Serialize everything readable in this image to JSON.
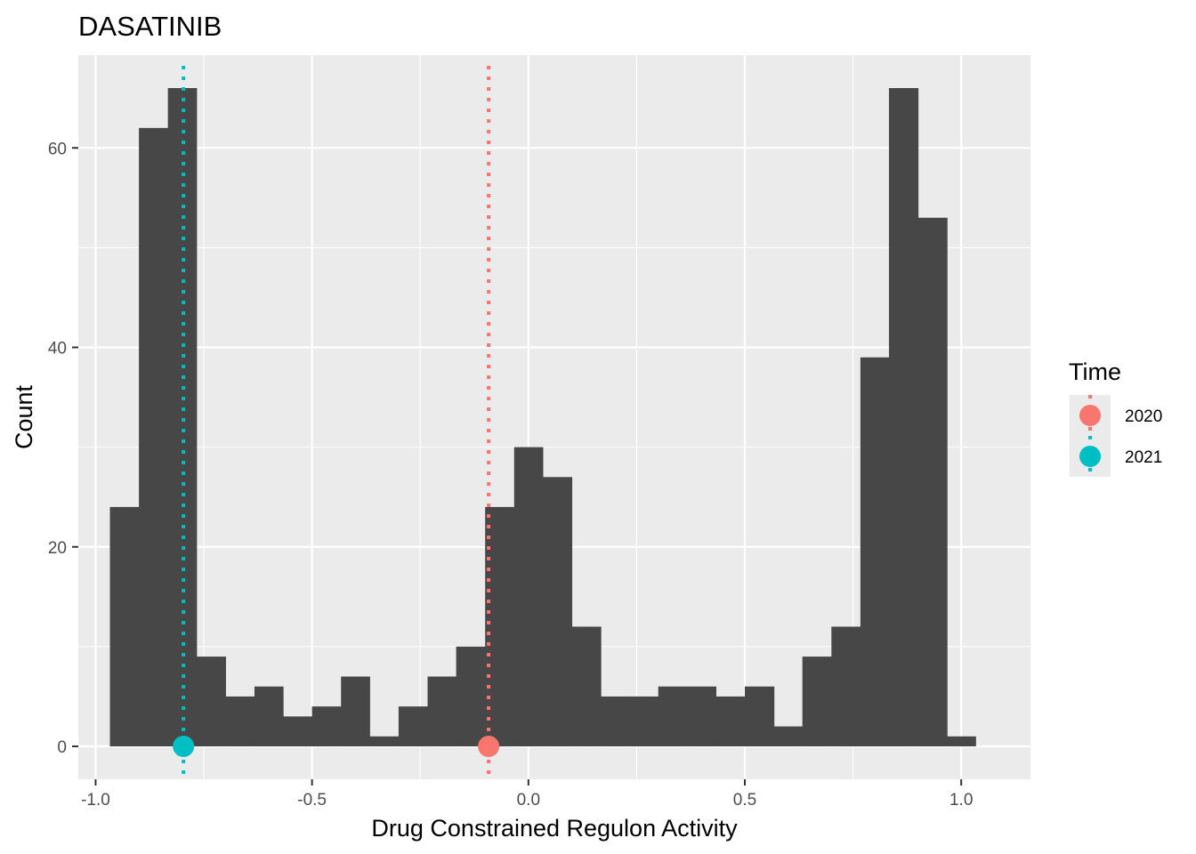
{
  "chart_data": {
    "type": "histogram",
    "title": "DASATINIB",
    "xlabel": "Drug Constrained Regulon Activity",
    "ylabel": "Count",
    "xlim": [
      -1.04,
      1.16
    ],
    "ylim": [
      -3.3,
      69.3
    ],
    "x_ticks": [
      -1.0,
      -0.5,
      0.0,
      0.5,
      1.0
    ],
    "x_tick_labels": [
      "-1.0",
      "-0.5",
      "0.0",
      "0.5",
      "1.0"
    ],
    "y_ticks": [
      0,
      20,
      40,
      60
    ],
    "y_tick_labels": [
      "0",
      "20",
      "40",
      "60"
    ],
    "grid": true,
    "bins": [
      {
        "x0": -0.967,
        "x1": -0.9,
        "count": 24
      },
      {
        "x0": -0.9,
        "x1": -0.833,
        "count": 62
      },
      {
        "x0": -0.833,
        "x1": -0.767,
        "count": 66
      },
      {
        "x0": -0.767,
        "x1": -0.7,
        "count": 9
      },
      {
        "x0": -0.7,
        "x1": -0.633,
        "count": 5
      },
      {
        "x0": -0.633,
        "x1": -0.567,
        "count": 6
      },
      {
        "x0": -0.567,
        "x1": -0.5,
        "count": 3
      },
      {
        "x0": -0.5,
        "x1": -0.433,
        "count": 4
      },
      {
        "x0": -0.433,
        "x1": -0.367,
        "count": 7
      },
      {
        "x0": -0.367,
        "x1": -0.3,
        "count": 1
      },
      {
        "x0": -0.3,
        "x1": -0.233,
        "count": 4
      },
      {
        "x0": -0.233,
        "x1": -0.167,
        "count": 7
      },
      {
        "x0": -0.167,
        "x1": -0.1,
        "count": 10
      },
      {
        "x0": -0.1,
        "x1": -0.033,
        "count": 24
      },
      {
        "x0": -0.033,
        "x1": 0.033,
        "count": 30
      },
      {
        "x0": 0.033,
        "x1": 0.1,
        "count": 27
      },
      {
        "x0": 0.1,
        "x1": 0.167,
        "count": 12
      },
      {
        "x0": 0.167,
        "x1": 0.233,
        "count": 5
      },
      {
        "x0": 0.233,
        "x1": 0.3,
        "count": 5
      },
      {
        "x0": 0.3,
        "x1": 0.367,
        "count": 6
      },
      {
        "x0": 0.367,
        "x1": 0.433,
        "count": 6
      },
      {
        "x0": 0.433,
        "x1": 0.5,
        "count": 5
      },
      {
        "x0": 0.5,
        "x1": 0.567,
        "count": 6
      },
      {
        "x0": 0.567,
        "x1": 0.633,
        "count": 2
      },
      {
        "x0": 0.633,
        "x1": 0.7,
        "count": 9
      },
      {
        "x0": 0.7,
        "x1": 0.767,
        "count": 12
      },
      {
        "x0": 0.767,
        "x1": 0.833,
        "count": 39
      },
      {
        "x0": 0.833,
        "x1": 0.9,
        "count": 66
      },
      {
        "x0": 0.9,
        "x1": 0.967,
        "count": 53
      },
      {
        "x0": 0.967,
        "x1": 1.033,
        "count": 1
      }
    ],
    "bar_color": "#474747",
    "markers": [
      {
        "name": "2020",
        "x": -0.092,
        "y": 0,
        "color": "#F8766D"
      },
      {
        "name": "2021",
        "x": -0.797,
        "y": 0,
        "color": "#00BFC4"
      }
    ],
    "legend": {
      "title": "Time",
      "position": "right"
    }
  }
}
